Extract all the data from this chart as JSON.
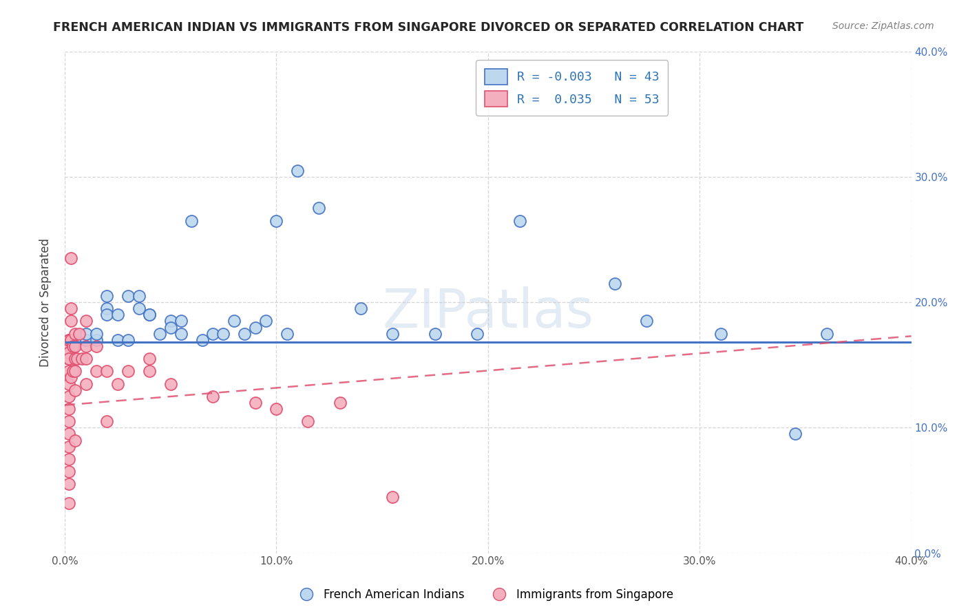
{
  "title": "FRENCH AMERICAN INDIAN VS IMMIGRANTS FROM SINGAPORE DIVORCED OR SEPARATED CORRELATION CHART",
  "source_text": "Source: ZipAtlas.com",
  "ylabel": "Divorced or Separated",
  "xlim": [
    0.0,
    0.4
  ],
  "ylim": [
    0.0,
    0.4
  ],
  "xtick_vals": [
    0.0,
    0.1,
    0.2,
    0.3,
    0.4
  ],
  "ytick_vals": [
    0.0,
    0.1,
    0.2,
    0.3,
    0.4
  ],
  "legend_r_blue": "R = -0.003",
  "legend_n_blue": "N = 43",
  "legend_r_pink": "R =  0.035",
  "legend_n_pink": "N = 53",
  "blue_color": "#4472C4",
  "pink_color": "#E05070",
  "blue_fill": "#BDD7EE",
  "pink_fill": "#F4AFBE",
  "watermark": "ZIPatlas",
  "title_color": "#262626",
  "source_color": "#808080",
  "right_tick_color": "#4472C4",
  "blue_trend_y": 0.168,
  "pink_trend_x0": 0.0,
  "pink_trend_x1": 0.4,
  "pink_trend_y0": 0.118,
  "pink_trend_y1": 0.173,
  "blue_scatter_x": [
    0.005,
    0.01,
    0.01,
    0.015,
    0.015,
    0.02,
    0.02,
    0.02,
    0.025,
    0.025,
    0.03,
    0.03,
    0.035,
    0.035,
    0.04,
    0.04,
    0.045,
    0.05,
    0.05,
    0.055,
    0.055,
    0.06,
    0.065,
    0.07,
    0.075,
    0.08,
    0.085,
    0.09,
    0.095,
    0.1,
    0.105,
    0.11,
    0.12,
    0.14,
    0.155,
    0.175,
    0.195,
    0.215,
    0.26,
    0.275,
    0.31,
    0.345,
    0.36
  ],
  "blue_scatter_y": [
    0.17,
    0.17,
    0.175,
    0.17,
    0.175,
    0.195,
    0.205,
    0.19,
    0.19,
    0.17,
    0.205,
    0.17,
    0.195,
    0.205,
    0.19,
    0.19,
    0.175,
    0.185,
    0.18,
    0.185,
    0.175,
    0.265,
    0.17,
    0.175,
    0.175,
    0.185,
    0.175,
    0.18,
    0.185,
    0.265,
    0.175,
    0.305,
    0.275,
    0.195,
    0.175,
    0.175,
    0.175,
    0.265,
    0.215,
    0.185,
    0.175,
    0.095,
    0.175
  ],
  "pink_scatter_x": [
    0.002,
    0.002,
    0.002,
    0.002,
    0.002,
    0.002,
    0.002,
    0.002,
    0.002,
    0.002,
    0.002,
    0.002,
    0.002,
    0.002,
    0.002,
    0.002,
    0.002,
    0.002,
    0.003,
    0.003,
    0.003,
    0.003,
    0.003,
    0.004,
    0.004,
    0.005,
    0.005,
    0.005,
    0.005,
    0.005,
    0.005,
    0.006,
    0.007,
    0.008,
    0.01,
    0.01,
    0.01,
    0.01,
    0.015,
    0.015,
    0.02,
    0.02,
    0.025,
    0.03,
    0.04,
    0.04,
    0.05,
    0.07,
    0.09,
    0.1,
    0.115,
    0.13,
    0.155
  ],
  "pink_scatter_y": [
    0.17,
    0.165,
    0.155,
    0.155,
    0.145,
    0.135,
    0.125,
    0.115,
    0.105,
    0.095,
    0.085,
    0.075,
    0.065,
    0.055,
    0.04,
    0.17,
    0.16,
    0.155,
    0.235,
    0.195,
    0.185,
    0.17,
    0.14,
    0.165,
    0.145,
    0.175,
    0.165,
    0.155,
    0.145,
    0.13,
    0.09,
    0.155,
    0.175,
    0.155,
    0.185,
    0.165,
    0.155,
    0.135,
    0.165,
    0.145,
    0.145,
    0.105,
    0.135,
    0.145,
    0.155,
    0.145,
    0.135,
    0.125,
    0.12,
    0.115,
    0.105,
    0.12,
    0.045
  ]
}
